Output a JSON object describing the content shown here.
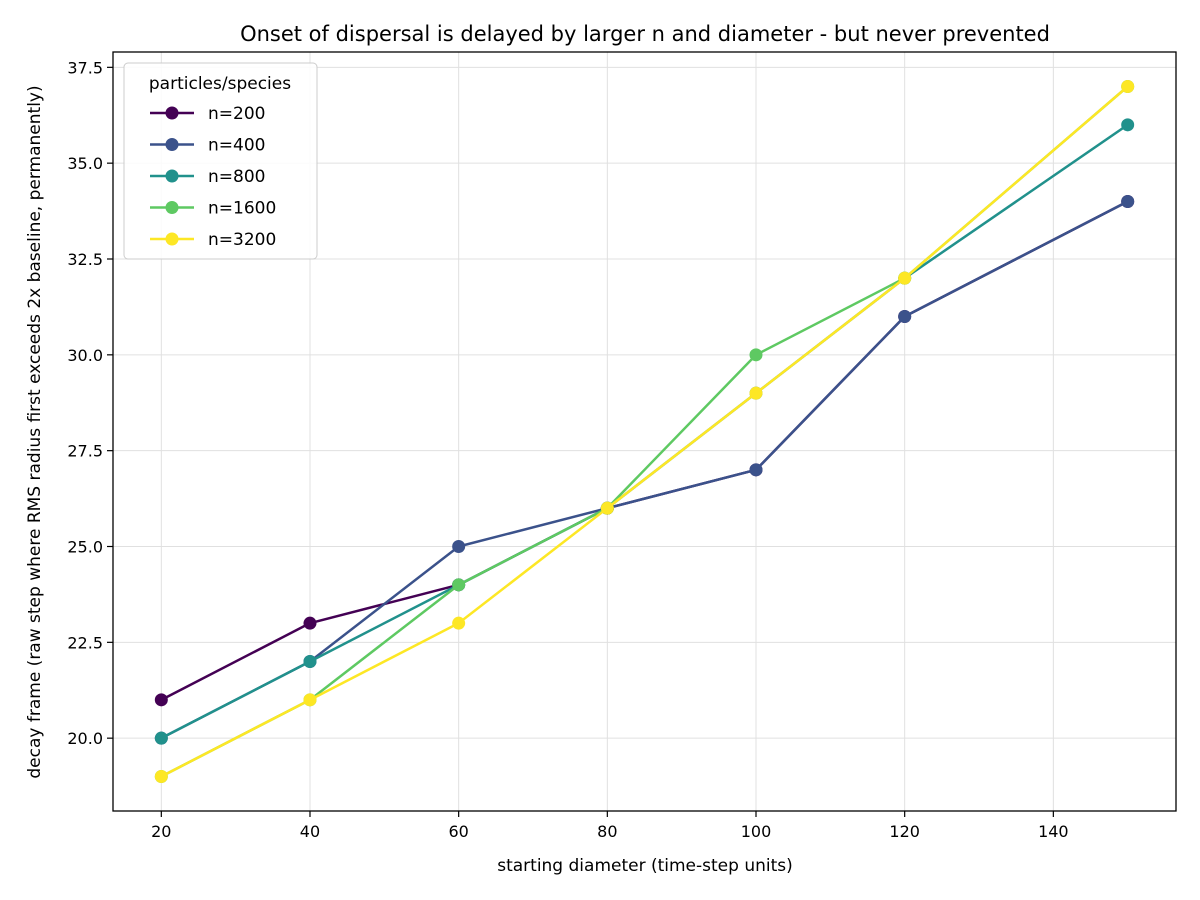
{
  "chart_data": {
    "type": "line",
    "title": "Onset of dispersal is delayed by larger n and diameter - but never prevented",
    "xlabel": "starting diameter (time-step units)",
    "ylabel": "decay frame (raw step where RMS radius first exceeds 2x baseline, permanently)",
    "x": [
      20,
      40,
      60,
      80,
      100,
      120,
      150
    ],
    "xlim": [
      13.5,
      156.5
    ],
    "ylim": [
      18.1,
      37.9
    ],
    "xticks": [
      20,
      40,
      60,
      80,
      100,
      120,
      140
    ],
    "yticks": [
      20.0,
      22.5,
      25.0,
      27.5,
      30.0,
      32.5,
      35.0,
      37.5
    ],
    "xtick_labels": [
      "20",
      "40",
      "60",
      "80",
      "100",
      "120",
      "140"
    ],
    "ytick_labels": [
      "20.0",
      "22.5",
      "25.0",
      "27.5",
      "30.0",
      "32.5",
      "35.0",
      "37.5"
    ],
    "grid": true,
    "legend": {
      "title": "particles/species",
      "placement": "top-left"
    },
    "series": [
      {
        "name": "n=200",
        "color": "#440154",
        "values": [
          21,
          23,
          24,
          26,
          27,
          31,
          34
        ]
      },
      {
        "name": "n=400",
        "color": "#3b528b",
        "values": [
          20,
          22,
          25,
          26,
          27,
          31,
          34
        ]
      },
      {
        "name": "n=800",
        "color": "#21918c",
        "values": [
          20,
          22,
          24,
          26,
          29,
          32,
          36
        ]
      },
      {
        "name": "n=1600",
        "color": "#5ec962",
        "values": [
          19,
          21,
          24,
          26,
          30,
          32,
          37
        ]
      },
      {
        "name": "n=3200",
        "color": "#fde725",
        "values": [
          19,
          21,
          23,
          26,
          29,
          32,
          37
        ]
      }
    ]
  }
}
